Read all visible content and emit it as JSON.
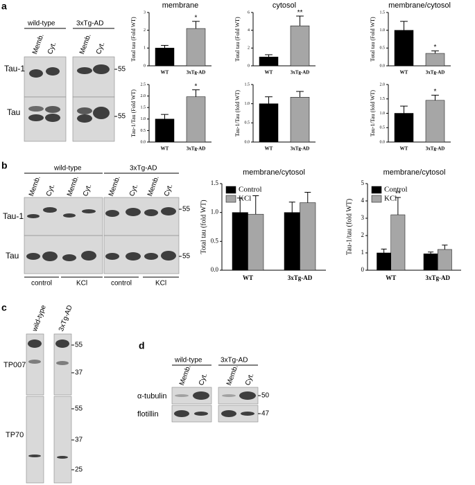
{
  "panels": {
    "a": {
      "letter": "a",
      "groups": [
        "wild-type",
        "3xTg-AD"
      ],
      "lanes": [
        "Memb.",
        "Cyt.",
        "Memb.",
        "Cyt."
      ],
      "rows": [
        "Tau-1",
        "Tau"
      ],
      "markers": [
        "55",
        "55"
      ]
    },
    "b": {
      "letter": "b",
      "groups": [
        "wild-type",
        "3xTg-AD"
      ],
      "lanes": [
        "Memb.",
        "Cyt.",
        "Memb.",
        "Cyt.",
        "Memb.",
        "Cyt.",
        "Memb.",
        "Cyt."
      ],
      "rows": [
        "Tau-1",
        "Tau"
      ],
      "markers": [
        "55",
        "55"
      ],
      "conditions": [
        "control",
        "KCl",
        "control",
        "KCl"
      ]
    },
    "c": {
      "letter": "c",
      "lanes": [
        "wild-type",
        "3xTg-AD"
      ],
      "rows": [
        "TP007",
        "TP70"
      ],
      "markers": [
        "55",
        "37",
        "55",
        "37",
        "25"
      ]
    },
    "d": {
      "letter": "d",
      "groups": [
        "wild-type",
        "3xTg-AD"
      ],
      "lanes": [
        "Memb.",
        "Cyt.",
        "Memb.",
        "Cyt."
      ],
      "rows": [
        "α-tubulin",
        "flotillin"
      ],
      "markers": [
        "50",
        "47"
      ]
    }
  },
  "chart_data": [
    {
      "type": "bar",
      "title": "membrane",
      "y_label": "Total tau (Fold WT)",
      "categories": [
        "WT",
        "3xTg-AD"
      ],
      "values": [
        1.0,
        2.1
      ],
      "errors": [
        0.15,
        0.4
      ],
      "colors": [
        "#000000",
        "#a6a6a6"
      ],
      "significance": [
        null,
        "*"
      ],
      "ylim": [
        0,
        3
      ],
      "yticks": [
        0,
        1,
        2,
        3
      ]
    },
    {
      "type": "bar",
      "title": "cytosol",
      "y_label": "Total tau (Fold WT)",
      "categories": [
        "WT",
        "3xTg-AD"
      ],
      "values": [
        1.0,
        4.5
      ],
      "errors": [
        0.25,
        1.1
      ],
      "colors": [
        "#000000",
        "#a6a6a6"
      ],
      "significance": [
        null,
        "**"
      ],
      "ylim": [
        0,
        6
      ],
      "yticks": [
        0,
        2,
        4,
        6
      ]
    },
    {
      "type": "bar",
      "title": "membrane/cytosol",
      "y_label": "Total tau (Fold WT)",
      "categories": [
        "WT",
        "3xTg-AD"
      ],
      "values": [
        1.0,
        0.35
      ],
      "errors": [
        0.25,
        0.07
      ],
      "colors": [
        "#000000",
        "#a6a6a6"
      ],
      "significance": [
        null,
        "*"
      ],
      "ylim": [
        0,
        1.5
      ],
      "yticks": [
        {
          "value": 0,
          "label": "0.0"
        },
        0.5,
        {
          "value": 1,
          "label": "1.0"
        },
        1.5
      ]
    },
    {
      "type": "bar",
      "y_label": "Tau-1/Tau (Fold WT)",
      "categories": [
        "WT",
        "3xTg-AD"
      ],
      "values": [
        1.0,
        1.97
      ],
      "errors": [
        0.2,
        0.3
      ],
      "colors": [
        "#000000",
        "#a6a6a6"
      ],
      "significance": [
        null,
        "*"
      ],
      "ylim": [
        0,
        2.5
      ],
      "yticks": [
        {
          "value": 0,
          "label": "0.0"
        },
        0.5,
        {
          "value": 1,
          "label": "1.0"
        },
        1.5,
        {
          "value": 2,
          "label": "2.0"
        },
        2.5
      ]
    },
    {
      "type": "bar",
      "y_label": "Tau-1/Tau (fold WT)",
      "categories": [
        "WT",
        "3xTg-AD"
      ],
      "values": [
        1.0,
        1.17
      ],
      "errors": [
        0.18,
        0.15
      ],
      "colors": [
        "#000000",
        "#a6a6a6"
      ],
      "ylim": [
        0,
        1.5
      ],
      "yticks": [
        {
          "value": 0,
          "label": "0.0"
        },
        0.5,
        {
          "value": 1,
          "label": "1.0"
        },
        1.5
      ]
    },
    {
      "type": "bar",
      "y_label": "Tau-1/Tau (fold WT)",
      "categories": [
        "WT",
        "3xTg-AD"
      ],
      "values": [
        1.0,
        1.45
      ],
      "errors": [
        0.25,
        0.18
      ],
      "colors": [
        "#000000",
        "#a6a6a6"
      ],
      "significance": [
        null,
        "*"
      ],
      "ylim": [
        0,
        2
      ],
      "yticks": [
        {
          "value": 0,
          "label": "0.0"
        },
        0.5,
        {
          "value": 1,
          "label": "1.0"
        },
        1.5,
        {
          "value": 2,
          "label": "2.0"
        }
      ]
    },
    {
      "type": "grouped_bar",
      "title": "membrane/cytosol",
      "y_label": "Total tau (fold WT)",
      "categories": [
        "WT",
        "3xTg-AD"
      ],
      "legend": "upper left",
      "ylim": [
        0,
        1.5
      ],
      "yticks": [
        {
          "value": 0,
          "label": "0.0"
        },
        0.5,
        {
          "value": 1,
          "label": "1.0"
        },
        1.5
      ],
      "series": [
        {
          "name": "Control",
          "color": "#000000",
          "values": [
            1.0,
            1.0
          ],
          "errors": [
            0.25,
            0.18
          ]
        },
        {
          "name": "KCl",
          "color": "#a6a6a6",
          "values": [
            0.97,
            1.17
          ],
          "errors": [
            0.32,
            0.18
          ]
        }
      ]
    },
    {
      "type": "grouped_bar",
      "title": "membrane/cytosol",
      "y_label": "Tau-1/tau (fold WT)",
      "categories": [
        "WT",
        "3xTg-AD"
      ],
      "legend": "upper left",
      "ylim": [
        0,
        5
      ],
      "yticks": [
        0,
        1,
        2,
        3,
        4,
        5
      ],
      "series": [
        {
          "name": "Control",
          "color": "#000000",
          "values": [
            1.0,
            0.95
          ],
          "errors": [
            0.22,
            0.1
          ]
        },
        {
          "name": "KCl",
          "color": "#a6a6a6",
          "values": [
            3.2,
            1.2
          ],
          "errors": [
            1.0,
            0.25
          ],
          "significance": [
            "**",
            null
          ]
        }
      ]
    }
  ]
}
